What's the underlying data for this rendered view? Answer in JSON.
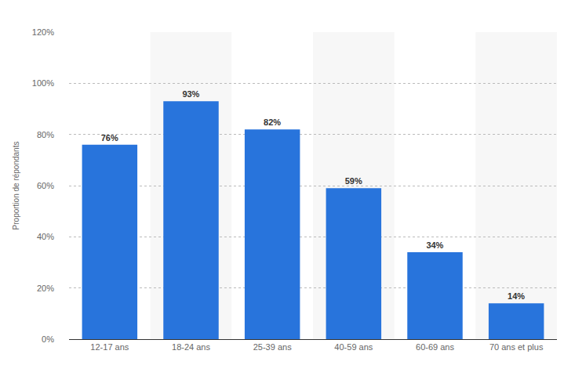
{
  "chart_data": {
    "type": "bar",
    "y_label": "Proportion de répondants",
    "categories": [
      "12-17 ans",
      "18-24 ans",
      "25-39 ans",
      "40-59 ans",
      "60-69 ans",
      "70 ans et plus"
    ],
    "values": [
      76,
      93,
      82,
      59,
      34,
      14
    ],
    "value_labels": [
      "76%",
      "93%",
      "82%",
      "59%",
      "34%",
      "14%"
    ],
    "color": "#2874dc",
    "ylim": [
      0,
      120
    ],
    "yticks": [
      {
        "value": 0,
        "label": "0%"
      },
      {
        "value": 20,
        "label": "20%"
      },
      {
        "value": 40,
        "label": "40%"
      },
      {
        "value": 60,
        "label": "60%"
      },
      {
        "value": 80,
        "label": "80%"
      },
      {
        "value": 100,
        "label": "100%"
      },
      {
        "value": 120,
        "label": "120%"
      }
    ],
    "grid": true,
    "data_labels": true
  }
}
